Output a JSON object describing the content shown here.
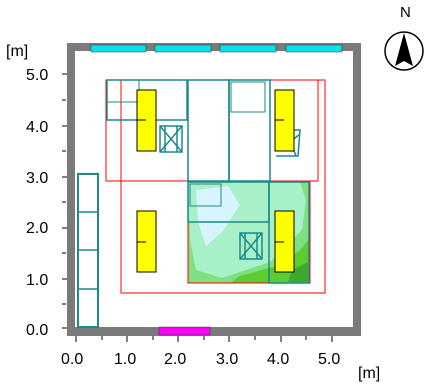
{
  "axes": {
    "y_unit": "[m]",
    "x_unit": "[m]",
    "y_ticks": [
      "5.0",
      "4.0",
      "3.0",
      "2.0",
      "1.0",
      "0.0"
    ],
    "x_ticks": [
      "0.0",
      "1.0",
      "2.0",
      "3.0",
      "4.0",
      "5.0"
    ]
  },
  "compass": {
    "label": "N"
  },
  "colors": {
    "wall": "#7a7a7a",
    "window": "#00e5ee",
    "door": "#ff00ff",
    "luminaire": "#ffff00",
    "furniture": "#1a8a8a",
    "calc_area": "#ff0000",
    "illum_low": "#7ee07e",
    "illum_mid": "#9ef0c0",
    "illum_high": "#cfeeff",
    "illum_edge": "#55cc33"
  }
}
